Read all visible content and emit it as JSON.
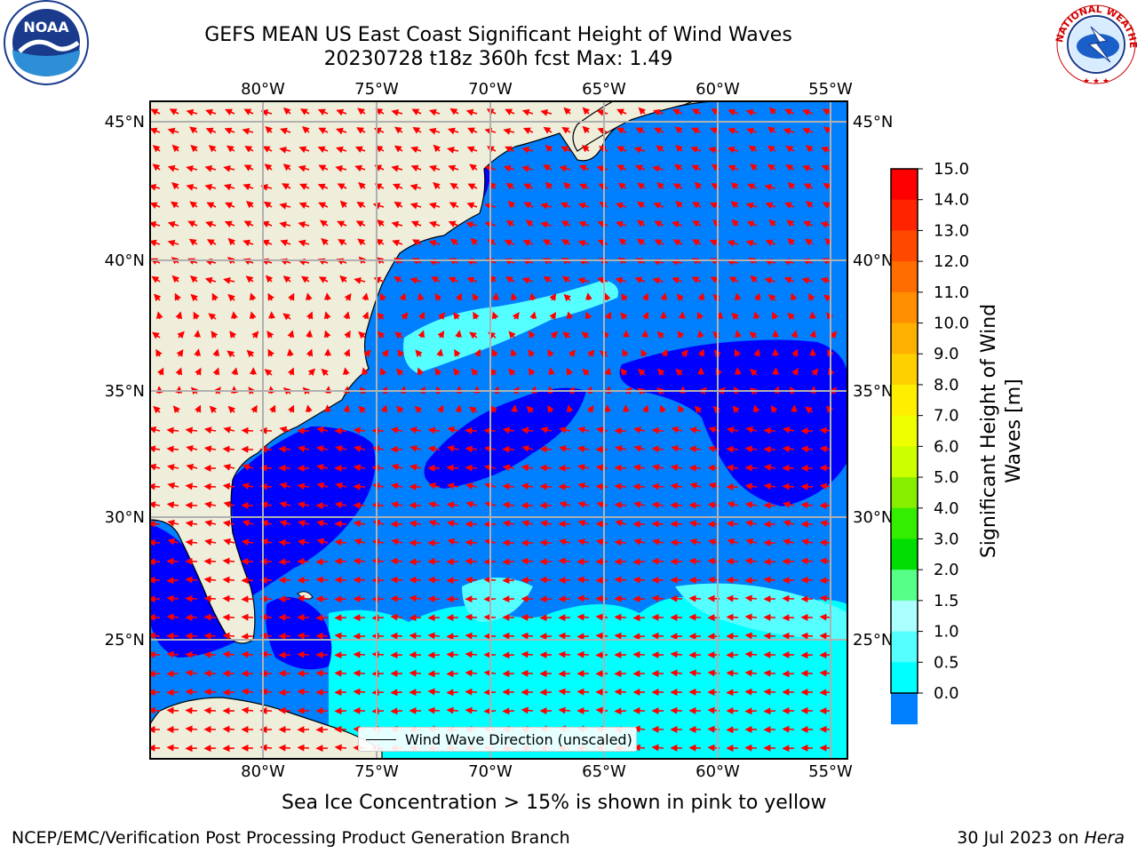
{
  "title": {
    "line1": "GEFS MEAN US East Coast Significant Height of Wind Waves",
    "line2": "20230728 t18z 360h fcst   Max: 1.49"
  },
  "logos": {
    "left": "NOAA",
    "right_text": "NATIONAL WEATHER SERVICE"
  },
  "axes": {
    "lon_labels": [
      "80°W",
      "75°W",
      "70°W",
      "65°W",
      "60°W",
      "55°W"
    ],
    "lat_labels": [
      "45°N",
      "40°N",
      "35°N",
      "30°N",
      "25°N"
    ]
  },
  "legend": {
    "label": "Wind Wave Direction (unscaled)"
  },
  "colorbar": {
    "label": "Significant Height of Wind Waves [m]",
    "ticks": [
      "15.0",
      "14.0",
      "13.0",
      "12.0",
      "11.0",
      "10.0",
      "9.0",
      "8.0",
      "7.0",
      "6.0",
      "5.0",
      "4.0",
      "3.0",
      "2.0",
      "1.5",
      "1.0",
      "0.5",
      "0.0"
    ],
    "colors": [
      "#ff0000",
      "#ff2400",
      "#ff4800",
      "#ff6d00",
      "#ff8f00",
      "#ffb000",
      "#ffd000",
      "#ffee00",
      "#eeff00",
      "#ccff00",
      "#88ee00",
      "#33ee00",
      "#00dd00",
      "#55ff88",
      "#aaffff",
      "#55ffff",
      "#00ffff",
      "#0080ff",
      "#0000ff"
    ]
  },
  "subtitle": "Sea Ice Concentration > 15% is shown in pink to yellow",
  "footer": {
    "left": "NCEP/EMC/Verification Post Processing Product Generation Branch",
    "right_date": "30 Jul 2023 on ",
    "right_host": "Hera"
  },
  "colors": {
    "land": "#efeedb",
    "sea_0_05": "#0000ff",
    "sea_05_1": "#0080ff",
    "sea_1_15": "#00ffff",
    "sea_15_2": "#55ffff",
    "arrow": "#ff0000",
    "grid": "#b0b0b0"
  }
}
